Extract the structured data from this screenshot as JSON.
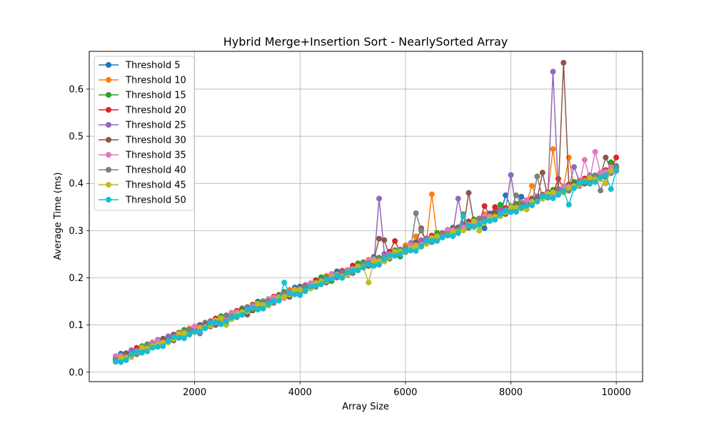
{
  "chart_data": {
    "type": "line",
    "title": "Hybrid Merge+Insertion Sort - NearlySorted Array",
    "xlabel": "Array Size",
    "ylabel": "Average Time (ms)",
    "xlim": [
      0,
      10500
    ],
    "ylim": [
      -0.02,
      0.68
    ],
    "xticks": [
      2000,
      4000,
      6000,
      8000,
      10000
    ],
    "yticks": [
      0.0,
      0.1,
      0.2,
      0.3,
      0.4,
      0.5,
      0.6
    ],
    "xtick_labels": [
      "2000",
      "4000",
      "6000",
      "8000",
      "10000"
    ],
    "ytick_labels": [
      "0.0",
      "0.1",
      "0.2",
      "0.3",
      "0.4",
      "0.5",
      "0.6"
    ],
    "grid": true,
    "legend_position": "upper-left",
    "x_start": 500,
    "x_step": 100,
    "x_count": 96,
    "slope_ms_per_size": 4.25e-05,
    "series": [
      {
        "name": "Threshold 5",
        "color": "#1f77b4",
        "base_offset": 0.008,
        "spikes": [
          [
            3100,
            0.133
          ],
          [
            3400,
            0.145
          ],
          [
            5300,
            0.232
          ],
          [
            5500,
            0.238
          ],
          [
            7500,
            0.305
          ],
          [
            7900,
            0.375
          ],
          [
            8200,
            0.372
          ]
        ]
      },
      {
        "name": "Threshold 10",
        "color": "#ff7f0e",
        "base_offset": 0.007,
        "spikes": [
          [
            3500,
            0.16
          ],
          [
            6200,
            0.288
          ],
          [
            6500,
            0.377
          ],
          [
            6700,
            0.295
          ],
          [
            7500,
            0.335
          ],
          [
            8400,
            0.395
          ],
          [
            8800,
            0.473
          ],
          [
            9100,
            0.455
          ]
        ]
      },
      {
        "name": "Threshold 15",
        "color": "#2ca02c",
        "base_offset": 0.008,
        "spikes": [
          [
            3900,
            0.168
          ],
          [
            4600,
            0.193
          ],
          [
            5900,
            0.245
          ],
          [
            6800,
            0.298
          ],
          [
            7200,
            0.315
          ],
          [
            7800,
            0.355
          ],
          [
            9900,
            0.445
          ]
        ]
      },
      {
        "name": "Threshold 20",
        "color": "#d62728",
        "base_offset": 0.007,
        "spikes": [
          [
            4800,
            0.215
          ],
          [
            5500,
            0.238
          ],
          [
            5800,
            0.278
          ],
          [
            7500,
            0.352
          ],
          [
            7700,
            0.35
          ],
          [
            8900,
            0.41
          ],
          [
            10000,
            0.455
          ]
        ]
      },
      {
        "name": "Threshold 25",
        "color": "#9467bd",
        "base_offset": 0.006,
        "spikes": [
          [
            2100,
            0.082
          ],
          [
            4900,
            0.215
          ],
          [
            5500,
            0.368
          ],
          [
            7000,
            0.368
          ],
          [
            8000,
            0.418
          ],
          [
            8800,
            0.637
          ],
          [
            9200,
            0.435
          ]
        ]
      },
      {
        "name": "Threshold 30",
        "color": "#8c564b",
        "base_offset": 0.005,
        "spikes": [
          [
            2400,
            0.1
          ],
          [
            3000,
            0.122
          ],
          [
            5500,
            0.283
          ],
          [
            5600,
            0.28
          ],
          [
            6300,
            0.305
          ],
          [
            7200,
            0.38
          ],
          [
            8600,
            0.423
          ],
          [
            9000,
            0.656
          ],
          [
            9800,
            0.455
          ]
        ]
      },
      {
        "name": "Threshold 35",
        "color": "#e377c2",
        "base_offset": 0.006,
        "spikes": [
          [
            4900,
            0.215
          ],
          [
            7600,
            0.33
          ],
          [
            9400,
            0.45
          ],
          [
            9600,
            0.467
          ],
          [
            9900,
            0.435
          ]
        ]
      },
      {
        "name": "Threshold 40",
        "color": "#7f7f7f",
        "base_offset": 0.004,
        "spikes": [
          [
            6200,
            0.337
          ],
          [
            6300,
            0.3
          ],
          [
            7100,
            0.335
          ],
          [
            8100,
            0.375
          ],
          [
            8500,
            0.415
          ],
          [
            8700,
            0.37
          ],
          [
            9700,
            0.385
          ]
        ]
      },
      {
        "name": "Threshold 45",
        "color": "#bcbd22",
        "base_offset": 0.003,
        "spikes": [
          [
            1200,
            0.056
          ],
          [
            2600,
            0.1
          ],
          [
            5300,
            0.19
          ],
          [
            7400,
            0.3
          ],
          [
            8300,
            0.345
          ],
          [
            9800,
            0.4
          ]
        ]
      },
      {
        "name": "Threshold 50",
        "color": "#17becf",
        "base_offset": 0.0,
        "spikes": [
          [
            3700,
            0.19
          ],
          [
            4700,
            0.205
          ],
          [
            7100,
            0.33
          ],
          [
            9100,
            0.355
          ],
          [
            9900,
            0.388
          ]
        ]
      }
    ]
  }
}
